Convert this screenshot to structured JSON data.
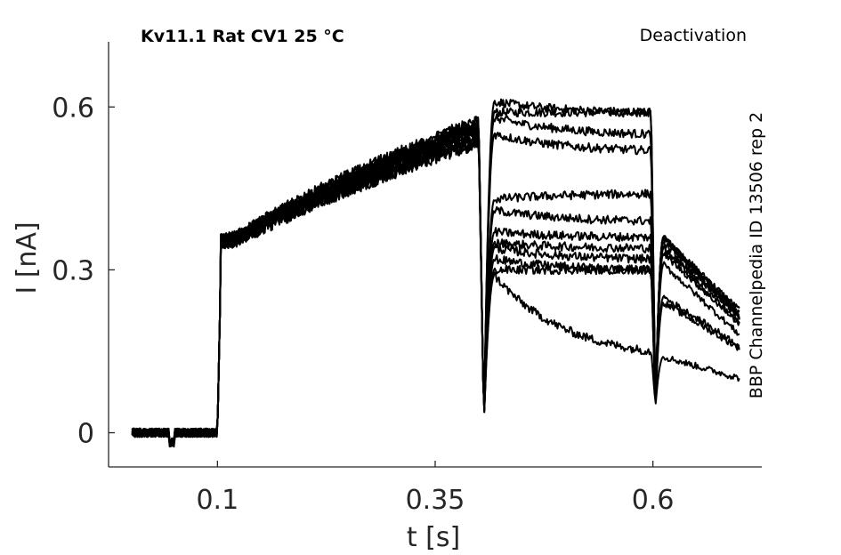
{
  "chart_data": {
    "type": "line",
    "title": "Kv11.1  Rat  CV1  25 °C",
    "subtitle": "Deactivation",
    "side_label": "BBP Channelpedia ID 13506 rep 2",
    "xlabel": "t [s]",
    "ylabel": "I [nA]",
    "xlim": [
      -0.025,
      0.725
    ],
    "ylim": [
      -0.063,
      0.72
    ],
    "xticks": [
      {
        "value": 0.1,
        "label": "0.1"
      },
      {
        "value": 0.35,
        "label": "0.35"
      },
      {
        "value": 0.6,
        "label": "0.6"
      }
    ],
    "yticks": [
      {
        "value": 0,
        "label": "0"
      },
      {
        "value": 0.3,
        "label": "0.3"
      },
      {
        "value": 0.6,
        "label": "0.6"
      }
    ],
    "line_color": "#000000",
    "grid": false,
    "legend": "none",
    "protocol": {
      "t_start": 0.002,
      "t_on": 0.1,
      "t_step": 0.4,
      "t_step2": 0.6,
      "t_end": 0.7,
      "hold_current": 0.0
    },
    "series": [
      {
        "peak": 0.59,
        "mid_end": 0.59,
        "tail_peak": 0.36,
        "end": 0.225,
        "trough": 0.02,
        "trough2": 0.05
      },
      {
        "peak": 0.61,
        "mid_end": 0.59,
        "tail_peak": 0.36,
        "end": 0.22,
        "trough": 0.02,
        "trough2": 0.05
      },
      {
        "peak": 0.58,
        "mid_end": 0.55,
        "tail_peak": 0.36,
        "end": 0.215,
        "trough": 0.02,
        "trough2": 0.05
      },
      {
        "peak": 0.55,
        "mid_end": 0.52,
        "tail_peak": 0.36,
        "end": 0.21,
        "trough": 0.02,
        "trough2": 0.05
      },
      {
        "peak": 0.43,
        "mid_end": 0.44,
        "tail_peak": 0.35,
        "end": 0.21,
        "trough": 0.02,
        "trough2": 0.05
      },
      {
        "peak": 0.41,
        "mid_end": 0.39,
        "tail_peak": 0.34,
        "end": 0.2,
        "trough": 0.02,
        "trough2": 0.05
      },
      {
        "peak": 0.37,
        "mid_end": 0.36,
        "tail_peak": 0.34,
        "end": 0.22,
        "trough": 0.02,
        "trough2": 0.05
      },
      {
        "peak": 0.35,
        "mid_end": 0.34,
        "tail_peak": 0.33,
        "end": 0.2,
        "trough": 0.02,
        "trough2": 0.05
      },
      {
        "peak": 0.34,
        "mid_end": 0.32,
        "tail_peak": 0.31,
        "end": 0.18,
        "trough": 0.02,
        "trough2": 0.05
      },
      {
        "peak": 0.32,
        "mid_end": 0.3,
        "tail_peak": 0.25,
        "end": 0.16,
        "trough": 0.02,
        "trough2": 0.05
      },
      {
        "peak": 0.3,
        "mid_end": 0.3,
        "tail_peak": 0.24,
        "end": 0.155,
        "trough": 0.02,
        "trough2": 0.05
      },
      {
        "peak": 0.29,
        "mid_end": 0.15,
        "tail_peak": 0.14,
        "end": 0.1,
        "trough": 0.02,
        "trough2": 0.05
      }
    ]
  }
}
